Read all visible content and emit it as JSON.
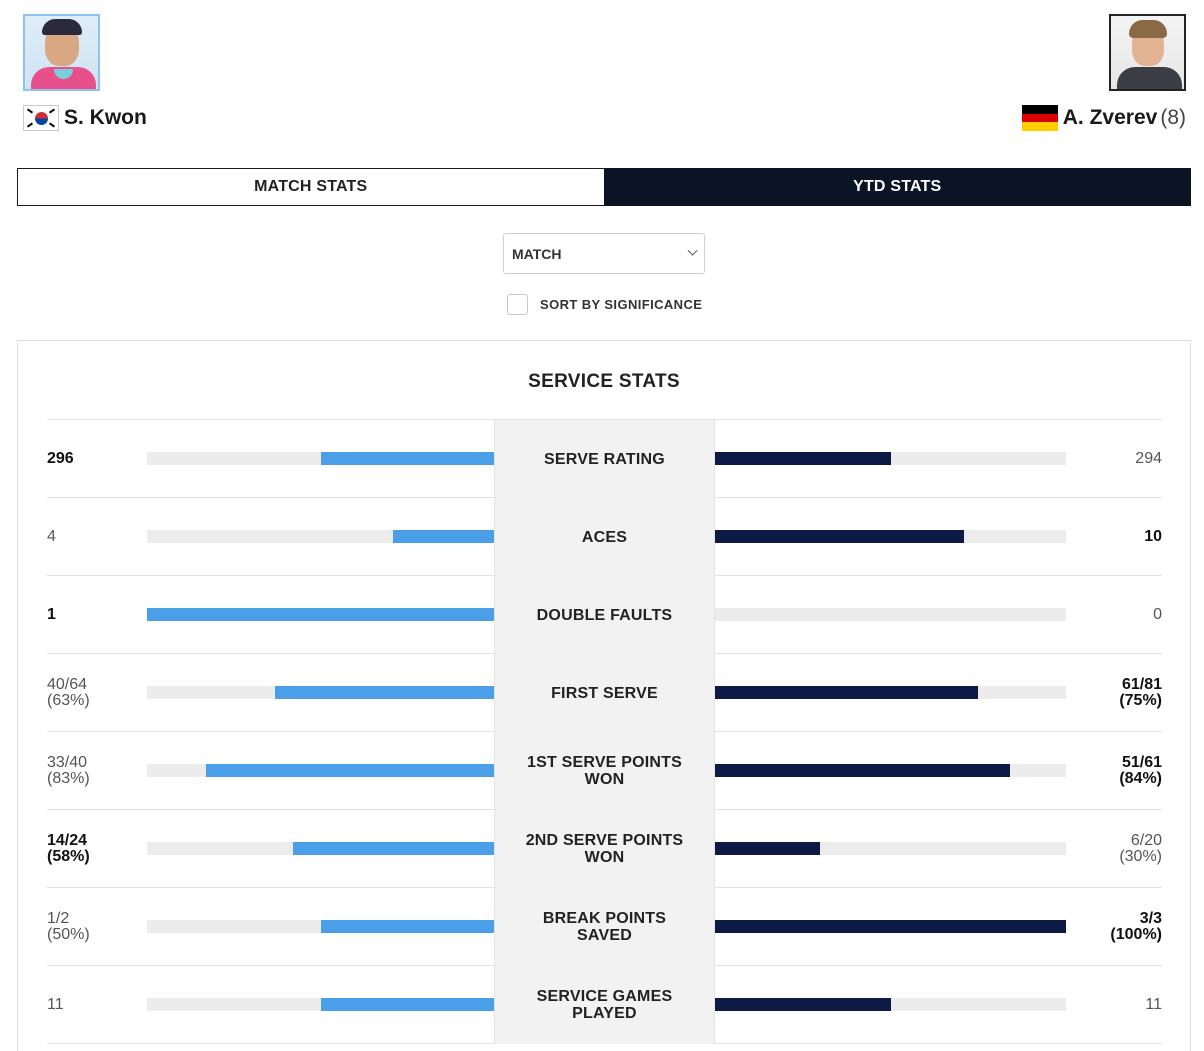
{
  "players": {
    "left": {
      "name": "S. Kwon",
      "flag": "KOR",
      "seed": ""
    },
    "right": {
      "name": "A. Zverev",
      "flag": "GER",
      "seed": "(8)"
    }
  },
  "tabs": [
    {
      "label": "MATCH STATS",
      "active": false
    },
    {
      "label": "YTD STATS",
      "active": true
    }
  ],
  "filters": {
    "select_value": "MATCH",
    "sort_label": "SORT BY SIGNIFICANCE",
    "sort_checked": false
  },
  "colors": {
    "left_bar": "#4b9fe8",
    "right_bar": "#0d1a45",
    "active_tab": "#0b1424"
  },
  "section_title": "SERVICE STATS",
  "stats": [
    {
      "label": "SERVE RATING",
      "left_value": "296",
      "left_sub": "",
      "right_value": "294",
      "right_sub": "",
      "left_fill": 0.5,
      "right_fill": 0.5,
      "winner": "left"
    },
    {
      "label": "ACES",
      "left_value": "4",
      "left_sub": "",
      "right_value": "10",
      "right_sub": "",
      "left_fill": 0.29,
      "right_fill": 0.71,
      "winner": "right"
    },
    {
      "label": "DOUBLE FAULTS",
      "left_value": "1",
      "left_sub": "",
      "right_value": "0",
      "right_sub": "",
      "left_fill": 1.0,
      "right_fill": 0.0,
      "winner": "left"
    },
    {
      "label": "FIRST SERVE",
      "left_value": "40/64",
      "left_sub": "(63%)",
      "right_value": "61/81",
      "right_sub": "(75%)",
      "left_fill": 0.63,
      "right_fill": 0.75,
      "winner": "right"
    },
    {
      "label": "1ST SERVE POINTS WON",
      "left_value": "33/40",
      "left_sub": "(83%)",
      "right_value": "51/61",
      "right_sub": "(84%)",
      "left_fill": 0.83,
      "right_fill": 0.84,
      "winner": "right"
    },
    {
      "label": "2ND SERVE POINTS WON",
      "left_value": "14/24",
      "left_sub": "(58%)",
      "right_value": "6/20",
      "right_sub": "(30%)",
      "left_fill": 0.58,
      "right_fill": 0.3,
      "winner": "left"
    },
    {
      "label": "BREAK POINTS SAVED",
      "left_value": "1/2",
      "left_sub": "(50%)",
      "right_value": "3/3",
      "right_sub": "(100%)",
      "left_fill": 0.5,
      "right_fill": 1.0,
      "winner": "right"
    },
    {
      "label": "SERVICE GAMES PLAYED",
      "left_value": "11",
      "left_sub": "",
      "right_value": "11",
      "right_sub": "",
      "left_fill": 0.5,
      "right_fill": 0.5,
      "winner": "none"
    }
  ]
}
